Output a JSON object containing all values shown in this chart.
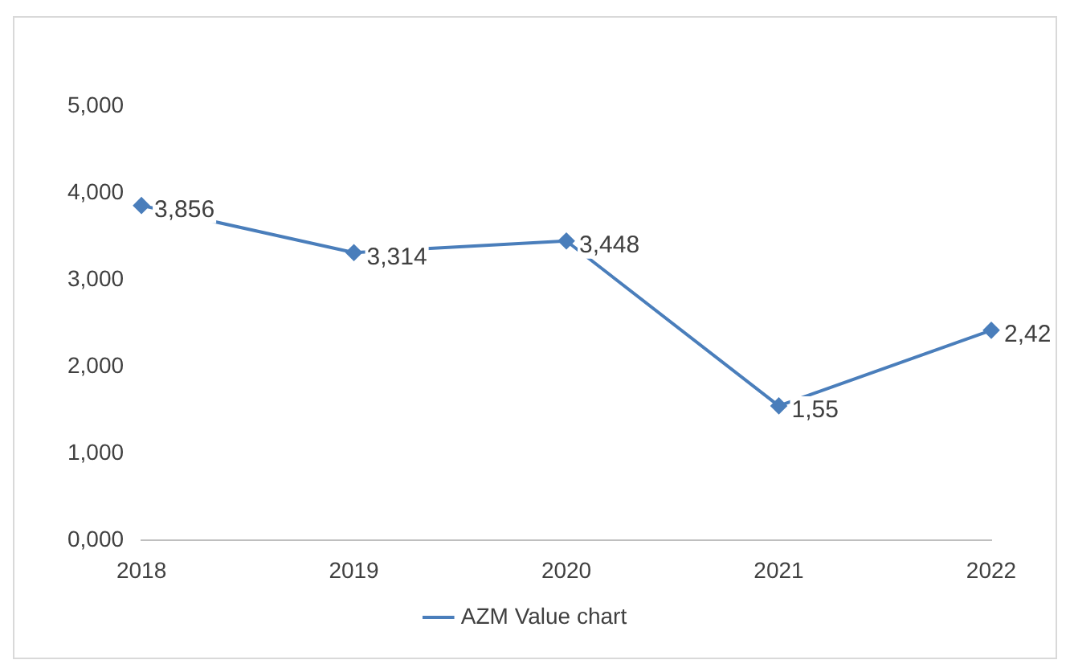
{
  "chart_data": {
    "type": "line",
    "categories": [
      "2018",
      "2019",
      "2020",
      "2021",
      "2022"
    ],
    "series": [
      {
        "name": "AZM Value chart",
        "color": "#4a7ebb",
        "values": [
          3.856,
          3.314,
          3.448,
          1.55,
          2.42
        ],
        "value_labels": [
          "3,856",
          "3,314",
          "3,448",
          "1,55",
          "2,42"
        ]
      }
    ],
    "ylim": [
      0,
      5
    ],
    "yticks": [
      {
        "value": 0,
        "label": "0,000"
      },
      {
        "value": 1,
        "label": "1,000"
      },
      {
        "value": 2,
        "label": "2,000"
      },
      {
        "value": 3,
        "label": "3,000"
      },
      {
        "value": 4,
        "label": "4,000"
      },
      {
        "value": 5,
        "label": "5,000"
      }
    ],
    "grid": false,
    "legend": "bottom",
    "marker": "diamond",
    "line_style": "solid"
  }
}
